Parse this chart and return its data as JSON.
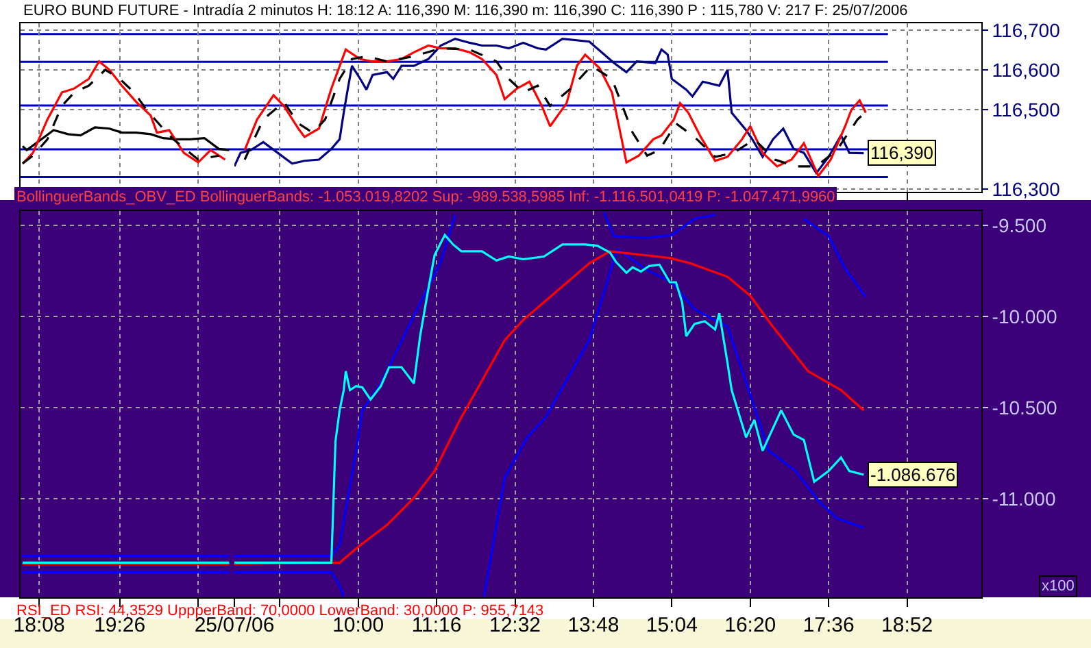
{
  "chart_data": [
    {
      "type": "line",
      "title": "EURO BUND FUTURE - Intradía 2 minutos H: 18:12 A: 116,390 M: 116,390 m: 116,390 C: 116,390 P : 115,780 V: 217 F: 25/07/2006",
      "xlim": [
        "2006-07-24T17:50",
        "2006-07-24T21:17"
      ],
      "ylim": [
        116.293,
        116.717
      ],
      "xticks": [
        {
          "value": "2006-07-24T18:08",
          "label": null
        },
        {
          "value": "2006-07-24T19:26",
          "label": null
        },
        {
          "value": "2006-07-24T20:42",
          "label": null
        }
      ],
      "yticks": [
        {
          "value": 116.3,
          "label": null
        },
        {
          "value": 116.5,
          "label": null
        },
        {
          "value": 116.6,
          "label": null
        },
        {
          "value": 116.7,
          "label": null
        }
      ],
      "tick_labels": false,
      "grid": true,
      "marker": "none",
      "line_style": "solid",
      "ref_lines": [
        {
          "axis": "y",
          "value": 116.69,
          "color": "#0000c0"
        },
        {
          "axis": "y",
          "value": 116.62,
          "color": "#0000c0"
        },
        {
          "axis": "y",
          "value": 116.51,
          "color": "#0000c0"
        },
        {
          "axis": "y",
          "value": 116.4,
          "color": "#0000c0"
        },
        {
          "axis": "y",
          "value": 116.33,
          "color": "#0000c0"
        }
      ],
      "series": [
        {
          "color": "#000000",
          "x": [
            "2006-07-24T17:52",
            "2006-07-24T17:56",
            "2006-07-24T18:10",
            "2006-07-24T18:22",
            "2006-07-24T18:36",
            "2006-07-24T18:48",
            "2006-07-24T19:02",
            "2006-07-24T19:16",
            "2006-07-24T19:28",
            "2006-07-24T19:42",
            "2006-07-24T19:56",
            "2006-07-24T20:08",
            "2006-07-24T20:22",
            "2006-07-24T20:34",
            "2006-07-24T20:48",
            "2006-07-24T21:02",
            "2006-07-24T21:12"
          ],
          "values": [
            116.408,
            116.398,
            116.425,
            116.448,
            116.438,
            116.435,
            116.455,
            116.452,
            116.442,
            116.442,
            116.438,
            116.428,
            116.425,
            116.425,
            116.428,
            116.401,
            116.398
          ]
        },
        {
          "color": "#ff0000",
          "x": [
            "2006-07-24T17:52",
            "2006-07-24T18:02",
            "2006-07-24T18:16",
            "2006-07-24T18:30",
            "2006-07-24T18:42",
            "2006-07-24T18:56",
            "2006-07-24T19:06",
            "2006-07-24T19:16",
            "2006-07-24T19:28",
            "2006-07-24T19:42",
            "2006-07-24T19:56",
            "2006-07-24T20:02",
            "2006-07-24T20:14",
            "2006-07-24T20:28",
            "2006-07-24T20:42",
            "2006-07-24T20:54",
            "2006-07-24T21:08"
          ],
          "values": [
            116.364,
            116.391,
            116.475,
            116.543,
            116.553,
            116.577,
            116.621,
            116.6,
            116.56,
            116.519,
            116.485,
            116.442,
            116.448,
            116.391,
            116.367,
            116.398,
            116.374
          ]
        },
        {
          "color": "#000000",
          "line_style": "dashed",
          "x": [
            "2006-07-24T17:52",
            "2006-07-24T18:02",
            "2006-07-24T18:16",
            "2006-07-24T18:30",
            "2006-07-24T18:42",
            "2006-07-24T18:56",
            "2006-07-24T19:12",
            "2006-07-24T19:26",
            "2006-07-24T19:40",
            "2006-07-24T19:52",
            "2006-07-24T20:06",
            "2006-07-24T20:18",
            "2006-07-24T20:42",
            "2006-07-24T21:02"
          ],
          "values": [
            116.364,
            116.384,
            116.425,
            116.509,
            116.543,
            116.56,
            116.6,
            116.577,
            116.543,
            116.499,
            116.458,
            116.425,
            116.374,
            116.384
          ]
        }
      ]
    },
    {
      "type": "line",
      "xlim": [
        "2006-07-25T08:00",
        "2006-07-25T20:04"
      ],
      "ylim": [
        116.293,
        116.717
      ],
      "xticks": [
        {
          "value": "2006-07-25T08:00",
          "label": null
        },
        {
          "value": "2006-07-25T08:44",
          "label": null
        },
        {
          "value": "2006-07-25T10:00",
          "label": null
        },
        {
          "value": "2006-07-25T11:16",
          "label": null
        },
        {
          "value": "2006-07-25T12:32",
          "label": null
        },
        {
          "value": "2006-07-25T13:48",
          "label": null
        },
        {
          "value": "2006-07-25T15:04",
          "label": null
        },
        {
          "value": "2006-07-25T16:20",
          "label": null
        },
        {
          "value": "2006-07-25T17:36",
          "label": null
        },
        {
          "value": "2006-07-25T18:52",
          "label": null
        }
      ],
      "yticks": [
        {
          "value": 116.3,
          "label": "116,300"
        },
        {
          "value": 116.5,
          "label": "116,500"
        },
        {
          "value": 116.6,
          "label": "116,600"
        },
        {
          "value": 116.7,
          "label": "116,700"
        }
      ],
      "tick_labels": "y",
      "grid": true,
      "marker": "none",
      "line_style": "solid",
      "ref_lines": [
        {
          "axis": "y",
          "value": 116.69,
          "color": "#0000c0"
        },
        {
          "axis": "y",
          "value": 116.62,
          "color": "#0000c0"
        },
        {
          "axis": "y",
          "value": 116.51,
          "color": "#0000c0"
        },
        {
          "axis": "y",
          "value": 116.4,
          "color": "#0000c0"
        },
        {
          "axis": "y",
          "value": 116.33,
          "color": "#0000c0"
        }
      ],
      "annotations": [
        {
          "text": "116,390",
          "x": "2006-07-25T18:10",
          "y": 116.39
        }
      ],
      "series": [
        {
          "color": "#000080",
          "x": [
            "2006-07-25T08:00",
            "2006-07-25T08:06",
            "2006-07-25T08:16",
            "2006-07-25T08:28",
            "2006-07-25T08:42",
            "2006-07-25T08:56",
            "2006-07-25T09:08",
            "2006-07-25T09:22",
            "2006-07-25T09:34",
            "2006-07-25T09:42",
            "2006-07-25T09:46",
            "2006-07-25T09:50",
            "2006-07-25T09:54",
            "2006-07-25T10:02",
            "2006-07-25T10:08",
            "2006-07-25T10:14",
            "2006-07-25T10:28",
            "2006-07-25T10:34",
            "2006-07-25T10:42",
            "2006-07-25T10:54",
            "2006-07-25T11:08",
            "2006-07-25T11:20",
            "2006-07-25T11:34",
            "2006-07-25T11:48",
            "2006-07-25T12:00",
            "2006-07-25T12:14",
            "2006-07-25T12:26",
            "2006-07-25T12:40",
            "2006-07-25T12:54",
            "2006-07-25T13:02",
            "2006-07-25T13:18",
            "2006-07-25T13:44",
            "2006-07-25T14:08",
            "2006-07-25T14:20",
            "2006-07-25T14:30",
            "2006-07-25T14:48",
            "2006-07-25T14:54",
            "2006-07-25T15:00",
            "2006-07-25T15:04",
            "2006-07-25T15:18",
            "2006-07-25T15:24",
            "2006-07-25T15:34",
            "2006-07-25T15:50",
            "2006-07-25T15:58",
            "2006-07-25T16:02",
            "2006-07-25T16:16",
            "2006-07-25T16:22",
            "2006-07-25T16:32",
            "2006-07-25T16:42",
            "2006-07-25T16:52",
            "2006-07-25T17:02",
            "2006-07-25T17:12",
            "2006-07-25T17:24",
            "2006-07-25T17:36",
            "2006-07-25T17:48",
            "2006-07-25T17:56",
            "2006-07-25T18:10"
          ],
          "values": [
            116.357,
            116.391,
            116.398,
            116.418,
            116.391,
            116.364,
            116.371,
            116.374,
            116.401,
            116.425,
            116.492,
            116.553,
            116.61,
            116.577,
            116.55,
            116.587,
            116.594,
            116.577,
            116.61,
            116.61,
            116.627,
            116.661,
            116.678,
            116.668,
            116.661,
            116.661,
            116.654,
            116.668,
            116.654,
            116.651,
            116.678,
            116.671,
            116.617,
            116.594,
            116.621,
            116.617,
            116.651,
            116.638,
            116.577,
            116.55,
            116.533,
            116.57,
            116.56,
            116.6,
            116.492,
            116.448,
            116.425,
            116.381,
            116.425,
            116.452,
            116.401,
            116.391,
            116.34,
            116.381,
            116.435,
            116.391,
            116.39
          ]
        },
        {
          "color": "#ff0000",
          "x": [
            "2006-07-25T08:10",
            "2006-07-25T08:22",
            "2006-07-25T08:38",
            "2006-07-25T08:48",
            "2006-07-25T09:02",
            "2006-07-25T09:08",
            "2006-07-25T09:22",
            "2006-07-25T09:34",
            "2006-07-25T09:48",
            "2006-07-25T10:02",
            "2006-07-25T10:14",
            "2006-07-25T10:28",
            "2006-07-25T10:42",
            "2006-07-25T10:54",
            "2006-07-25T11:08",
            "2006-07-25T11:20",
            "2006-07-25T11:34",
            "2006-07-25T11:48",
            "2006-07-25T12:00",
            "2006-07-25T12:14",
            "2006-07-25T12:22",
            "2006-07-25T12:34",
            "2006-07-25T12:46",
            "2006-07-25T12:58",
            "2006-07-25T13:06",
            "2006-07-25T13:22",
            "2006-07-25T13:32",
            "2006-07-25T13:40",
            "2006-07-25T13:54",
            "2006-07-25T14:06",
            "2006-07-25T14:20",
            "2006-07-25T14:32",
            "2006-07-25T14:46",
            "2006-07-25T14:54",
            "2006-07-25T15:06",
            "2006-07-25T15:12",
            "2006-07-25T15:20",
            "2006-07-25T15:32",
            "2006-07-25T15:46",
            "2006-07-25T15:58",
            "2006-07-25T16:12",
            "2006-07-25T16:20",
            "2006-07-25T16:32",
            "2006-07-25T16:46",
            "2006-07-25T17:00",
            "2006-07-25T17:12",
            "2006-07-25T17:26",
            "2006-07-25T17:38",
            "2006-07-25T17:52",
            "2006-07-25T17:58",
            "2006-07-25T18:06",
            "2006-07-25T18:12"
          ],
          "values": [
            116.398,
            116.475,
            116.536,
            116.509,
            116.452,
            116.431,
            116.452,
            116.553,
            116.651,
            116.627,
            116.621,
            116.621,
            116.627,
            116.644,
            116.661,
            116.654,
            116.654,
            116.644,
            116.627,
            116.587,
            116.526,
            116.553,
            116.57,
            116.509,
            116.458,
            116.516,
            116.61,
            116.638,
            116.604,
            116.543,
            116.367,
            116.384,
            116.425,
            116.435,
            116.475,
            116.516,
            116.492,
            116.431,
            116.371,
            116.381,
            116.425,
            116.458,
            116.391,
            116.357,
            116.374,
            116.415,
            116.333,
            116.374,
            116.458,
            116.499,
            116.523,
            116.492
          ]
        },
        {
          "color": "#000000",
          "line_style": "dashed",
          "x": [
            "2006-07-25T08:10",
            "2006-07-25T08:28",
            "2006-07-25T08:48",
            "2006-07-25T09:02",
            "2006-07-25T09:16",
            "2006-07-25T09:28",
            "2006-07-25T09:42",
            "2006-07-25T09:54",
            "2006-07-25T10:08",
            "2006-07-25T10:28",
            "2006-07-25T10:54",
            "2006-07-25T11:20",
            "2006-07-25T11:48",
            "2006-07-25T12:14",
            "2006-07-25T12:26",
            "2006-07-25T12:40",
            "2006-07-25T12:54",
            "2006-07-25T13:06",
            "2006-07-25T13:26",
            "2006-07-25T13:46",
            "2006-07-25T14:06",
            "2006-07-25T14:26",
            "2006-07-25T14:40",
            "2006-07-25T14:52",
            "2006-07-25T15:08",
            "2006-07-25T15:26",
            "2006-07-25T15:46",
            "2006-07-25T16:04",
            "2006-07-25T16:24",
            "2006-07-25T16:44",
            "2006-07-25T17:04",
            "2006-07-25T17:24",
            "2006-07-25T17:44",
            "2006-07-25T18:04",
            "2006-07-25T18:14"
          ],
          "values": [
            116.374,
            116.475,
            116.519,
            116.465,
            116.442,
            116.475,
            116.577,
            116.627,
            116.634,
            116.621,
            116.634,
            116.654,
            116.651,
            116.621,
            116.577,
            116.543,
            116.56,
            116.509,
            116.553,
            116.61,
            116.577,
            116.442,
            116.384,
            116.398,
            116.465,
            116.431,
            116.381,
            116.391,
            116.425,
            116.374,
            116.357,
            116.357,
            116.398,
            116.475,
            116.499
          ]
        }
      ]
    },
    {
      "type": "line",
      "title": "BollinguerBands_OBV_ED BollinguerBands: -1.053.019,8202 Sup: -989.538,5985 Inf: -1.116.501,0419 P: -1.047.471,9960",
      "xlim": [
        "2006-07-24T17:50",
        "2006-07-24T21:17"
      ],
      "ylim": [
        -11540,
        -9420
      ],
      "xticks": [
        {
          "value": "2006-07-24T18:08",
          "label": "18:08"
        },
        {
          "value": "2006-07-24T19:26",
          "label": "19:26"
        },
        {
          "value": "2006-07-24T20:42",
          "label": null
        }
      ],
      "yticks": [
        {
          "value": -11000,
          "label": null
        },
        {
          "value": -10500,
          "label": null
        },
        {
          "value": -10000,
          "label": null
        },
        {
          "value": -9500,
          "label": null
        }
      ],
      "tick_labels": "x",
      "grid": true,
      "marker": "none",
      "line_style": "solid",
      "annotations": [
        "RSI_ED RSI: 44,3529 UppperBand: 70,0000 LowerBand: 30,0000 P: 955,7143"
      ],
      "series": [
        {
          "color": "#0000ff",
          "x": [
            "2006-07-24T17:52",
            "2006-07-24T21:12"
          ],
          "values": [
            -11313,
            -11313
          ]
        },
        {
          "color": "#0000ff",
          "x": [
            "2006-07-24T17:52",
            "2006-07-24T21:12"
          ],
          "values": [
            -11402,
            -11402
          ]
        },
        {
          "color": "#ff0000",
          "x": [
            "2006-07-24T17:52",
            "2006-07-24T21:12"
          ],
          "values": [
            -11357,
            -11357
          ]
        },
        {
          "color": "#00ffff",
          "x": [
            "2006-07-24T17:52",
            "2006-07-24T21:12"
          ],
          "values": [
            -11350,
            -11350
          ]
        }
      ]
    },
    {
      "type": "line",
      "xlim": [
        "2006-07-25T08:00",
        "2006-07-25T20:04"
      ],
      "ylim": [
        -11540,
        -9420
      ],
      "xticks": [
        {
          "value": "2006-07-25T08:00",
          "label": "25/07/06"
        },
        {
          "value": "2006-07-25T08:44",
          "label": null
        },
        {
          "value": "2006-07-25T10:00",
          "label": "10:00"
        },
        {
          "value": "2006-07-25T11:16",
          "label": "11:16"
        },
        {
          "value": "2006-07-25T12:32",
          "label": "12:32"
        },
        {
          "value": "2006-07-25T13:48",
          "label": "13:48"
        },
        {
          "value": "2006-07-25T15:04",
          "label": "15:04"
        },
        {
          "value": "2006-07-25T16:20",
          "label": "16:20"
        },
        {
          "value": "2006-07-25T17:36",
          "label": "17:36"
        },
        {
          "value": "2006-07-25T18:52",
          "label": "18:52"
        }
      ],
      "yticks": [
        {
          "value": -11000,
          "label": "-11.000"
        },
        {
          "value": -10500,
          "label": "-10.500"
        },
        {
          "value": -10000,
          "label": "-10.000"
        },
        {
          "value": -9500,
          "label": "-9.500"
        }
      ],
      "grid": true,
      "marker": "none",
      "line_style": "solid",
      "annotations": [
        {
          "text": "-1.086.676",
          "x": "2006-07-25T18:10",
          "y": -10867
        },
        "x100"
      ],
      "series": [
        {
          "color": "#0000ff",
          "x": [
            "2006-07-25T08:00",
            "2006-07-25T09:34",
            "2006-07-25T09:42",
            "2006-07-25T09:58",
            "2006-07-25T10:04",
            "2006-07-25T10:22",
            "2006-07-25T10:54",
            "2006-07-25T11:20",
            "2006-07-25T11:34",
            "2006-07-25T11:36",
            "2006-07-25T13:58",
            "2006-07-25T14:08",
            "2006-07-25T14:40",
            "2006-07-25T15:04",
            "2006-07-25T15:26",
            "2006-07-25T15:46",
            "2006-07-25T16:16",
            "2006-07-25T17:12",
            "2006-07-25T17:36",
            "2006-07-25T17:52",
            "2006-07-25T18:12"
          ],
          "values": [
            -11313,
            -11313,
            -11254,
            -10736,
            -10514,
            -10366,
            -9996,
            -9700,
            -9441,
            null,
            -9426,
            -9559,
            -9567,
            -9552,
            -9463,
            -9441,
            null,
            -9463,
            -9559,
            -9737,
            -9892
          ]
        },
        {
          "color": "#0000ff",
          "x": [
            "2006-07-25T08:00",
            "2006-07-25T09:34",
            "2006-07-25T09:42",
            "2006-07-25T09:46",
            "2006-07-25T11:36",
            "2006-07-25T12:02",
            "2006-07-25T12:22",
            "2006-07-25T12:44",
            "2006-07-25T13:02",
            "2006-07-25T13:44",
            "2006-07-25T14:08",
            "2006-07-25T14:12",
            "2006-07-25T14:40",
            "2006-07-25T15:04",
            "2006-07-25T15:26",
            "2006-07-25T15:58",
            "2006-07-25T16:24",
            "2006-07-25T16:38",
            "2006-07-25T17:04",
            "2006-07-25T17:26",
            "2006-07-25T17:44",
            "2006-07-25T18:10"
          ],
          "values": [
            -11402,
            -11402,
            -11476,
            -11535,
            null,
            -11535,
            -10884,
            -10662,
            -10551,
            -10129,
            -9685,
            -9633,
            -9744,
            -9811,
            -9959,
            -10055,
            -10499,
            -10736,
            -10847,
            -11010,
            -11106,
            -11158
          ]
        },
        {
          "color": "#ff0000",
          "x": [
            "2006-07-25T08:00",
            "2006-07-25T09:42",
            "2006-07-25T10:02",
            "2006-07-25T10:28",
            "2006-07-25T10:54",
            "2006-07-25T11:14",
            "2006-07-25T11:38",
            "2006-07-25T12:22",
            "2006-07-25T12:40",
            "2006-07-25T13:06",
            "2006-07-25T13:44",
            "2006-07-25T14:04",
            "2006-07-25T14:26",
            "2006-07-25T15:02",
            "2006-07-25T15:22",
            "2006-07-25T15:58",
            "2006-07-25T16:20",
            "2006-07-25T16:42",
            "2006-07-25T17:16",
            "2006-07-25T17:48",
            "2006-07-25T18:10"
          ],
          "values": [
            -11357,
            -11350,
            -11254,
            -11143,
            -10995,
            -10847,
            -10573,
            -10129,
            -10018,
            -9892,
            -9707,
            -9641,
            -9655,
            -9678,
            -9707,
            -9781,
            -9885,
            -10055,
            -10299,
            -10403,
            -10514
          ]
        },
        {
          "color": "#00ffff",
          "x": [
            "2006-07-25T08:00",
            "2006-07-25T09:34",
            "2006-07-25T09:38",
            "2006-07-25T09:42",
            "2006-07-25T09:46",
            "2006-07-25T09:48",
            "2006-07-25T09:52",
            "2006-07-25T09:58",
            "2006-07-25T10:04",
            "2006-07-25T10:12",
            "2006-07-25T10:22",
            "2006-07-25T10:30",
            "2006-07-25T10:42",
            "2006-07-25T10:54",
            "2006-07-25T11:00",
            "2006-07-25T11:08",
            "2006-07-25T11:14",
            "2006-07-25T11:24",
            "2006-07-25T11:32",
            "2006-07-25T11:40",
            "2006-07-25T12:00",
            "2006-07-25T12:14",
            "2006-07-25T12:26",
            "2006-07-25T12:40",
            "2006-07-25T13:00",
            "2006-07-25T13:18",
            "2006-07-25T13:40",
            "2006-07-25T13:52",
            "2006-07-25T14:04",
            "2006-07-25T14:10",
            "2006-07-25T14:20",
            "2006-07-25T14:26",
            "2006-07-25T14:34",
            "2006-07-25T14:42",
            "2006-07-25T14:52",
            "2006-07-25T15:02",
            "2006-07-25T15:08",
            "2006-07-25T15:14",
            "2006-07-25T15:18",
            "2006-07-25T15:26",
            "2006-07-25T15:36",
            "2006-07-25T15:46",
            "2006-07-25T15:50",
            "2006-07-25T15:58",
            "2006-07-25T16:02",
            "2006-07-25T16:16",
            "2006-07-25T16:24",
            "2006-07-25T16:32",
            "2006-07-25T16:50",
            "2006-07-25T17:02",
            "2006-07-25T17:12",
            "2006-07-25T17:22",
            "2006-07-25T17:36",
            "2006-07-25T17:48",
            "2006-07-25T17:56",
            "2006-07-25T18:10"
          ],
          "values": [
            -11350,
            -11350,
            -10684,
            -10514,
            -10403,
            -10299,
            -10403,
            -10381,
            -10388,
            -10455,
            -10381,
            -10277,
            -10277,
            -10366,
            -10107,
            -9848,
            -9663,
            -9552,
            -9604,
            -9641,
            -9641,
            -9692,
            -9670,
            -9685,
            -9670,
            -9604,
            -9604,
            -9611,
            -9648,
            -9700,
            -9759,
            -9729,
            -9752,
            -9722,
            -9715,
            -9811,
            -9811,
            -9922,
            -10107,
            -10040,
            -10025,
            -10070,
            -9981,
            -10255,
            -10403,
            -10662,
            -10566,
            -10736,
            -10514,
            -10647,
            -10677,
            -10906,
            -10847,
            -10773,
            -10847,
            -10867
          ]
        }
      ]
    }
  ]
}
